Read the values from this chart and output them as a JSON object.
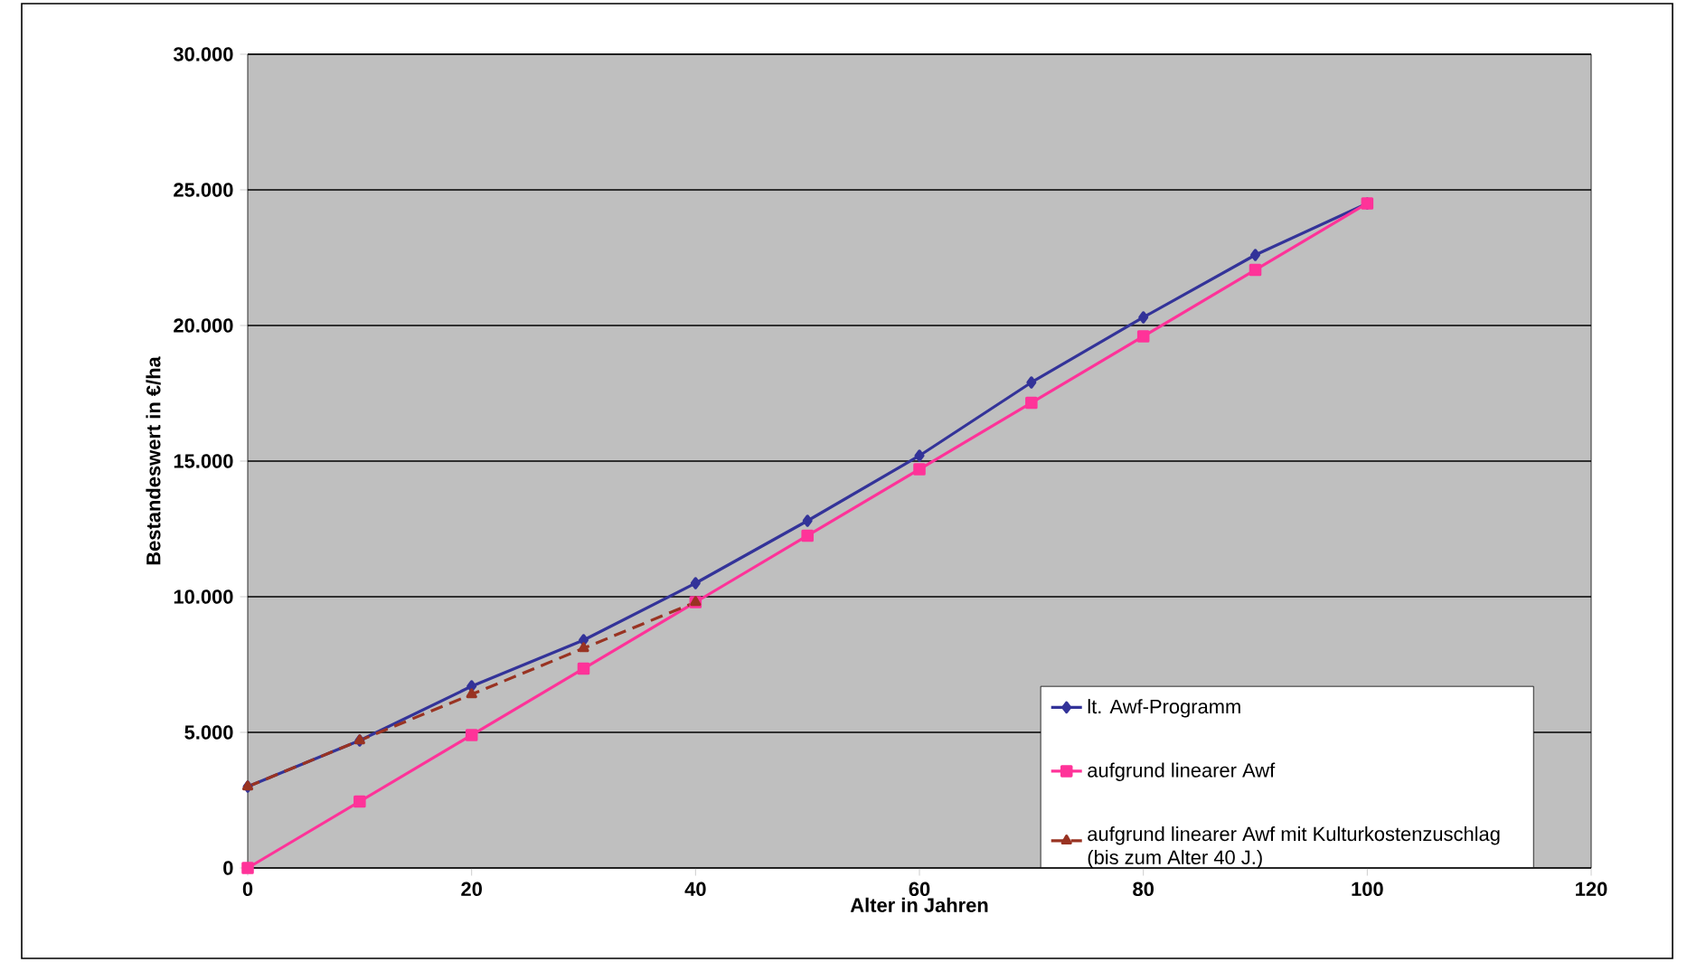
{
  "chart_data": {
    "type": "line",
    "xlabel": "Alter in Jahren",
    "ylabel": "Bestandeswert in €/ha",
    "xlim": [
      0,
      120
    ],
    "xticks": [
      0,
      20,
      40,
      60,
      80,
      100,
      120
    ],
    "ylim": [
      0,
      30000
    ],
    "yticks": [
      {
        "value": 0,
        "label": "0"
      },
      {
        "value": 5000,
        "label": "5.000"
      },
      {
        "value": 10000,
        "label": "10.000"
      },
      {
        "value": 15000,
        "label": "15.000"
      },
      {
        "value": 20000,
        "label": "20.000"
      },
      {
        "value": 25000,
        "label": "25.000"
      },
      {
        "value": 30000,
        "label": "30.000"
      }
    ],
    "grid": "y",
    "legend": "bottom right",
    "series": [
      {
        "name": "lt. Awf-Programm",
        "color": "#333399",
        "marker": "diamond",
        "line_style": "solid",
        "x": [
          0,
          10,
          20,
          30,
          40,
          50,
          60,
          70,
          80,
          90,
          100
        ],
        "values": [
          3000,
          4700,
          6700,
          8400,
          10500,
          12800,
          15200,
          17900,
          20300,
          22600,
          24500
        ]
      },
      {
        "name": "aufgrund linearer Awf",
        "color": "#ff3399",
        "marker": "square",
        "line_style": "solid",
        "x": [
          0,
          10,
          20,
          30,
          40,
          50,
          60,
          70,
          80,
          90,
          100
        ],
        "values": [
          0,
          2450,
          4900,
          7350,
          9800,
          12250,
          14700,
          17150,
          19600,
          22050,
          24500
        ]
      },
      {
        "name": "aufgrund linearer Awf mit Kulturkostenzuschlag (bis zum Alter 40 J.)",
        "color": "#993322",
        "marker": "triangle",
        "line_style": "dashed",
        "x": [
          0,
          10,
          20,
          30,
          40
        ],
        "values": [
          3000,
          4700,
          6400,
          8100,
          9800
        ]
      }
    ]
  }
}
